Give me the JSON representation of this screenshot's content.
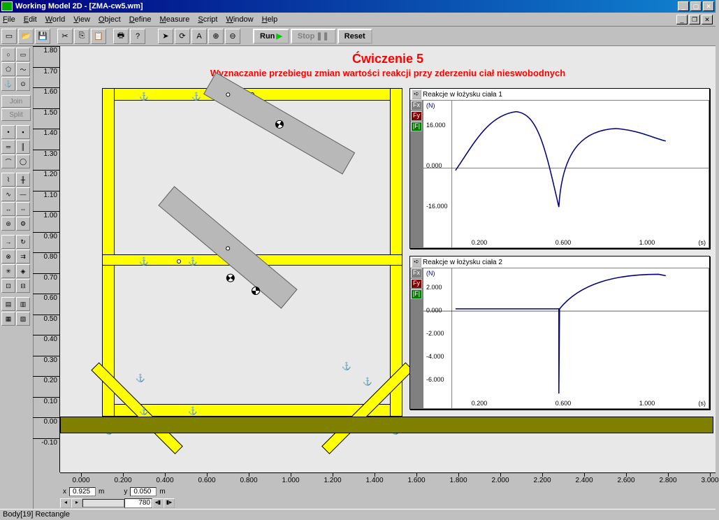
{
  "title": "Working Model 2D - [ZMA-cw5.wm]",
  "menus": [
    "File",
    "Edit",
    "World",
    "View",
    "Object",
    "Define",
    "Measure",
    "Script",
    "Window",
    "Help"
  ],
  "menu_accel": [
    "F",
    "E",
    "W",
    "V",
    "O",
    "D",
    "M",
    "S",
    "W",
    "H"
  ],
  "toolbar": {
    "run": "Run",
    "stop": "Stop",
    "reset": "Reset"
  },
  "lefttools": {
    "join": "Join",
    "split": "Split"
  },
  "heading": {
    "title": "Ćwiczenie 5",
    "subtitle": "Wyznaczanie przebiegu zmian wartości reakcji przy zderzeniu ciał nieswobodnych"
  },
  "ruler_v": {
    "ticks": [
      "1.80",
      "1.70",
      "1.60",
      "1.50",
      "1.40",
      "1.30",
      "1.20",
      "1.10",
      "1.00",
      "0.90",
      "0.80",
      "0.70",
      "0.60",
      "0.50",
      "0.40",
      "0.30",
      "0.20",
      "0.10",
      "0.00",
      "-0.10"
    ]
  },
  "ruler_h": {
    "ticks": [
      "0.000",
      "0.200",
      "0.400",
      "0.600",
      "0.800",
      "1.000",
      "1.200",
      "1.400",
      "1.600",
      "1.800",
      "2.000",
      "2.200",
      "2.400",
      "2.600",
      "2.800",
      "3.000"
    ]
  },
  "chart1": {
    "title": "Reakcje w łożysku ciała 1",
    "unit": "(N)",
    "xunit": "(s)",
    "buttons": [
      {
        "label": "Fx",
        "bg": "#808080"
      },
      {
        "label": "Fy",
        "bg": "#800000"
      },
      {
        "label": "|F|",
        "bg": "#008000"
      }
    ],
    "yticks": [
      "16.000",
      "0.000",
      "-16.000"
    ],
    "xticks": [
      "0.200",
      "0.600",
      "1.000"
    ],
    "line_color": "#000080",
    "line": "M 5 95 C 30 60, 50 20, 90 15 C 120 18, 130 60, 150 145 C 155 60, 190 40, 230 38 C 260 40, 280 50, 300 55"
  },
  "chart2": {
    "title": "Reakcje w łożysku ciała 2",
    "unit": "(N)",
    "xunit": "(s)",
    "buttons": [
      {
        "label": "Fx",
        "bg": "#808080"
      },
      {
        "label": "Fy",
        "bg": "#800000"
      },
      {
        "label": "|F|",
        "bg": "#008000"
      }
    ],
    "yticks": [
      "2.000",
      "0.000",
      "-2.000",
      "-4.000",
      "-6.000"
    ],
    "xticks": [
      "0.200",
      "0.600",
      "1.000"
    ],
    "line_color": "#000080",
    "line": "M 5 55 L 150 55 L 150 170 L 151 55 C 180 20, 230 8, 290 8 L 300 10"
  },
  "colors": {
    "yellow": "#ffff00",
    "ground": "#808000",
    "gray": "#b8b8b8",
    "canvas": "#e8e8e8"
  },
  "status": {
    "x_label": "x",
    "x_val": "0.925",
    "x_unit": "m",
    "y_label": "y",
    "y_val": "0.050",
    "y_unit": "m",
    "frame": "780"
  },
  "statusbar": "Body[19]   Rectangle"
}
